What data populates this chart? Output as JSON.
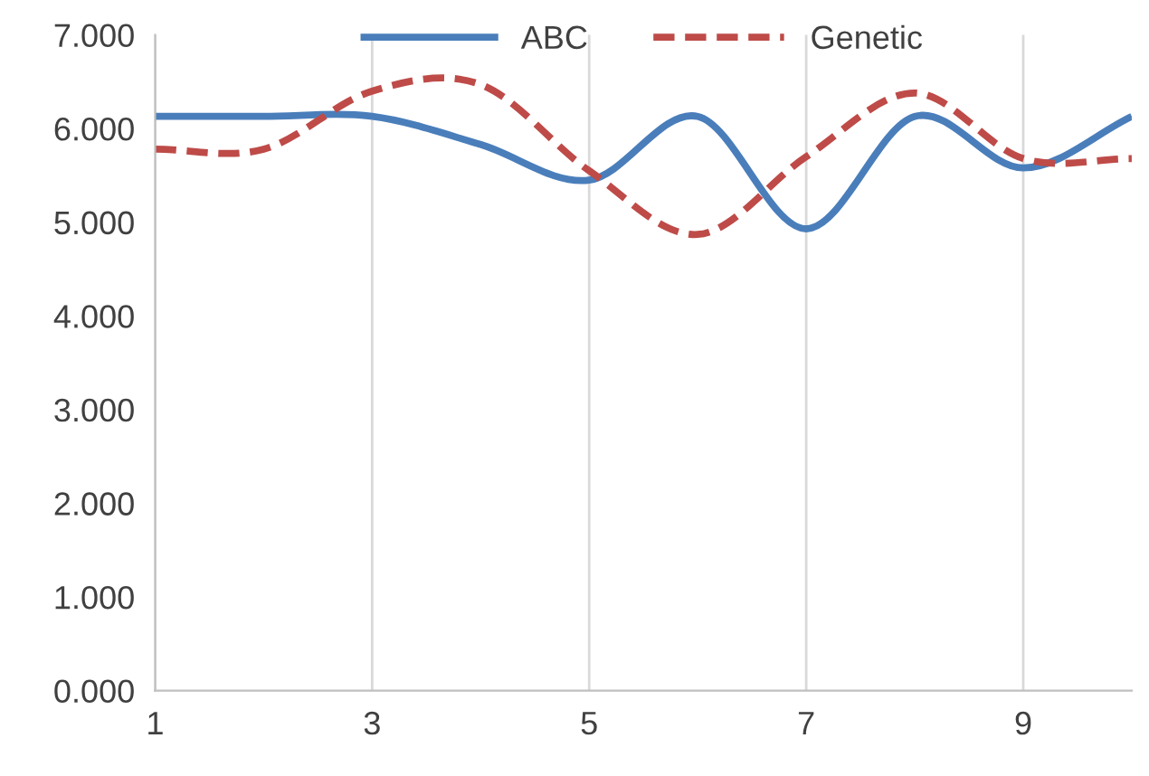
{
  "chart_data": {
    "type": "line",
    "x": [
      1,
      2,
      3,
      4,
      5,
      6,
      7,
      8,
      9,
      10
    ],
    "series": [
      {
        "name": "ABC",
        "color": "#4a7ebb",
        "line_style": "solid",
        "values": [
          6.13,
          6.13,
          6.13,
          5.83,
          5.45,
          6.13,
          4.93,
          6.13,
          5.58,
          6.13
        ]
      },
      {
        "name": "Genetic",
        "color": "#be4b48",
        "line_style": "dashed",
        "values": [
          5.78,
          5.78,
          6.4,
          6.47,
          5.55,
          4.87,
          5.7,
          6.38,
          5.68,
          5.68
        ]
      }
    ],
    "xlim": [
      1,
      10
    ],
    "xticks": [
      1,
      3,
      5,
      7,
      9
    ],
    "ylim": [
      0,
      7
    ],
    "yticks": [
      {
        "value": 0,
        "label": "0.000"
      },
      {
        "value": 1,
        "label": "1.000"
      },
      {
        "value": 2,
        "label": "2.000"
      },
      {
        "value": 3,
        "label": "3.000"
      },
      {
        "value": 4,
        "label": "4.000"
      },
      {
        "value": 5,
        "label": "5.000"
      },
      {
        "value": 6,
        "label": "6.000"
      },
      {
        "value": 7,
        "label": "7.000"
      }
    ],
    "grid": "x",
    "legend": "top",
    "marker": "none"
  }
}
